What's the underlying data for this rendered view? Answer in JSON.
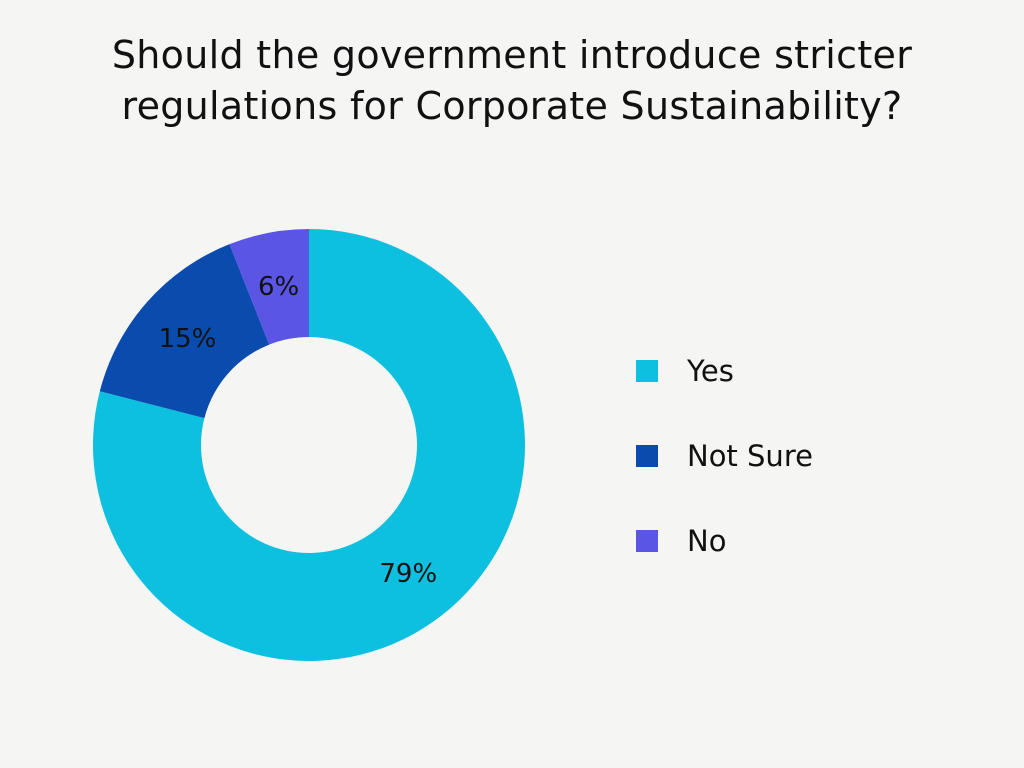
{
  "chart_data": {
    "type": "pie",
    "donut": true,
    "title": "Should the government introduce stricter regulations for Corporate Sustainability?",
    "categories": [
      "Yes",
      "Not Sure",
      "No"
    ],
    "values": [
      79,
      15,
      6
    ],
    "value_labels": [
      "79%",
      "15%",
      "6%"
    ],
    "colors": [
      "#0ec0e0",
      "#0a4cad",
      "#5b55e6"
    ],
    "legend": {
      "placement": "right",
      "entries": [
        "Yes",
        "Not Sure",
        "No"
      ]
    }
  }
}
